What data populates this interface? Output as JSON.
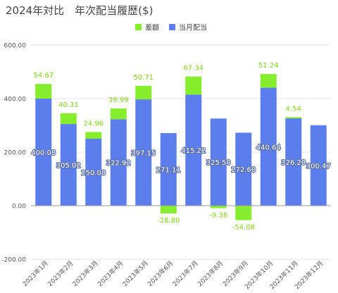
{
  "title": "2024年対比　年次配当履歴($)",
  "chart_data": {
    "type": "bar",
    "stacked": true,
    "title": "2024年対比　年次配当履歴($)",
    "categories": [
      "2023年1月",
      "2023年2月",
      "2023年3月",
      "2023年4月",
      "2023年5月",
      "2023年6月",
      "2023年7月",
      "2023年8月",
      "2023年9月",
      "2023年10月",
      "2023年11月",
      "2023年12月"
    ],
    "series": [
      {
        "name": "当月配当",
        "color": "#5b7eec",
        "values": [
          400.08,
          305.02,
          250.08,
          322.92,
          397.15,
          271.11,
          415.22,
          325.5,
          272.6,
          440.64,
          326.2,
          300.47
        ],
        "labels": [
          "400.08",
          "305.02",
          "250.08",
          "322.92",
          "397.15",
          "271.11",
          "415.22",
          "325.50",
          "272.60",
          "440.64",
          "326.20",
          "300.47"
        ]
      },
      {
        "name": "差額",
        "color": "#86ee2c",
        "values": [
          54.67,
          40.31,
          24.96,
          39.99,
          50.71,
          -28.8,
          67.34,
          -9.38,
          -54.08,
          51.24,
          4.54,
          null
        ],
        "labels": [
          "54.67",
          "40.31",
          "24.96",
          "39.99",
          "50.71",
          "-28.80",
          "67.34",
          "-9.38",
          "-54.08",
          "51.24",
          "4.54",
          ""
        ]
      }
    ],
    "ylim": [
      -200,
      600
    ],
    "yticks": [
      "600.00",
      "400.00",
      "200.00",
      "0.00",
      "-200.00"
    ],
    "ytick_values": [
      600,
      400,
      200,
      0,
      -200
    ],
    "grid": true,
    "legend_position": "top-right"
  }
}
